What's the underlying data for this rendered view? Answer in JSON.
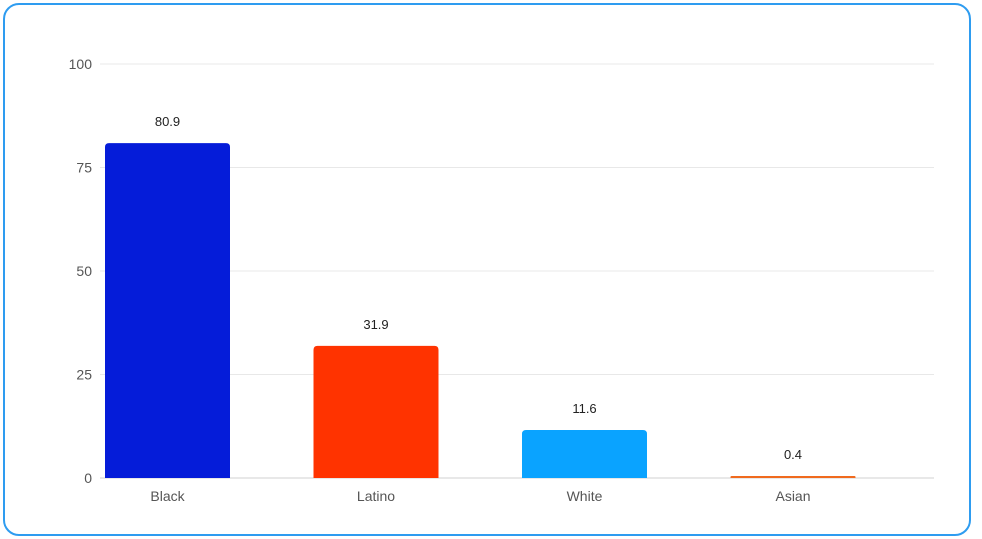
{
  "chart_data": {
    "type": "bar",
    "categories": [
      "Black",
      "Latino",
      "White",
      "Asian"
    ],
    "values": [
      80.9,
      31.9,
      11.6,
      0.4
    ],
    "value_labels": [
      "80.9",
      "31.9",
      "11.6",
      "0.4"
    ],
    "colors": [
      "#051cd9",
      "#ff3300",
      "#0aa3ff",
      "#f06a1e"
    ],
    "ylim": [
      0,
      100
    ],
    "yticks": [
      0,
      25,
      50,
      75,
      100
    ],
    "ytick_labels": [
      "0",
      "25",
      "50",
      "75",
      "100"
    ],
    "grid": true,
    "title": "",
    "xlabel": "",
    "ylabel": ""
  }
}
